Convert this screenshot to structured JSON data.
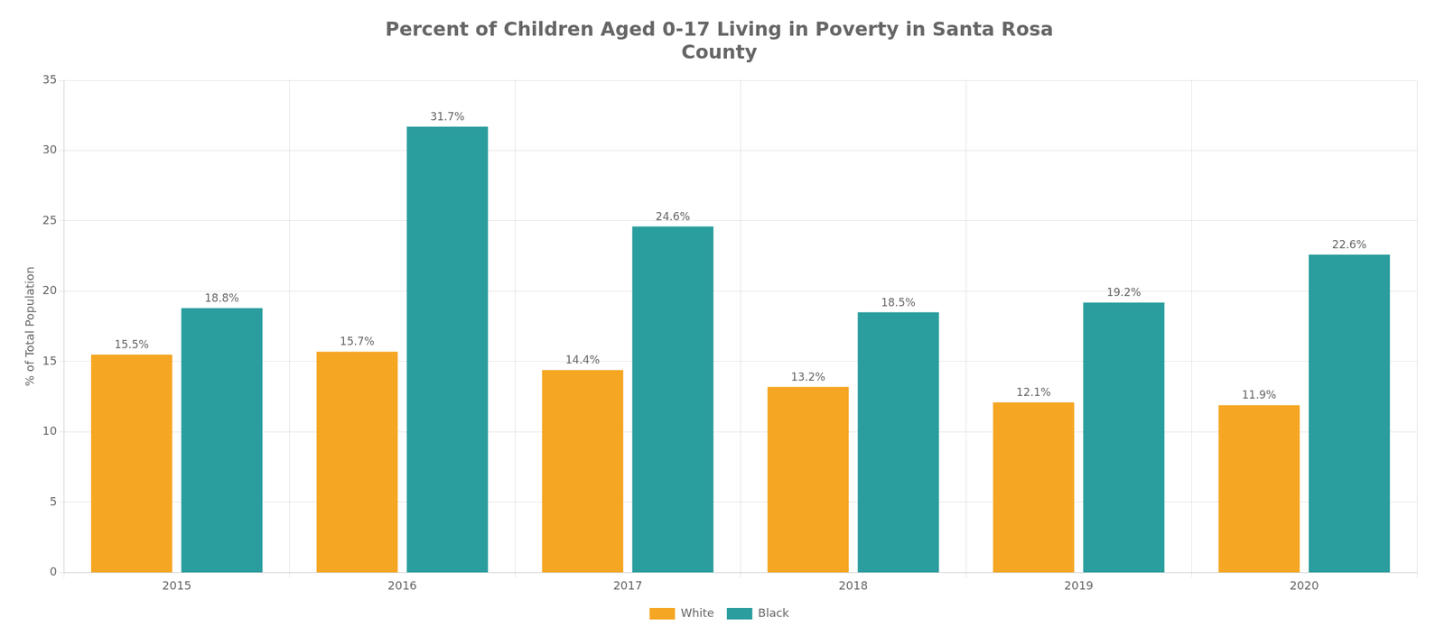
{
  "chart_data": {
    "type": "bar",
    "title": "Percent of Children Aged 0-17 Living in Poverty in Santa Rosa\nCounty",
    "ylabel": "% of Total Population",
    "categories": [
      "2015",
      "2016",
      "2017",
      "2018",
      "2019",
      "2020"
    ],
    "series": [
      {
        "name": "White",
        "color": "#F5A623",
        "values": [
          15.5,
          15.7,
          14.4,
          13.2,
          12.1,
          11.9
        ],
        "value_labels": [
          "15.5%",
          "15.7%",
          "14.4%",
          "13.2%",
          "12.1%",
          "11.9%"
        ]
      },
      {
        "name": "Black",
        "color": "#2A9D9E",
        "values": [
          18.8,
          31.7,
          24.6,
          18.5,
          19.2,
          22.6
        ],
        "value_labels": [
          "18.8%",
          "31.7%",
          "24.6%",
          "18.5%",
          "19.2%",
          "22.6%"
        ]
      }
    ],
    "ylim": [
      0,
      35
    ],
    "yticks": [
      0,
      5,
      10,
      15,
      20,
      25,
      30,
      35
    ],
    "grid": true,
    "legend": "bottom",
    "data_labels": true
  }
}
